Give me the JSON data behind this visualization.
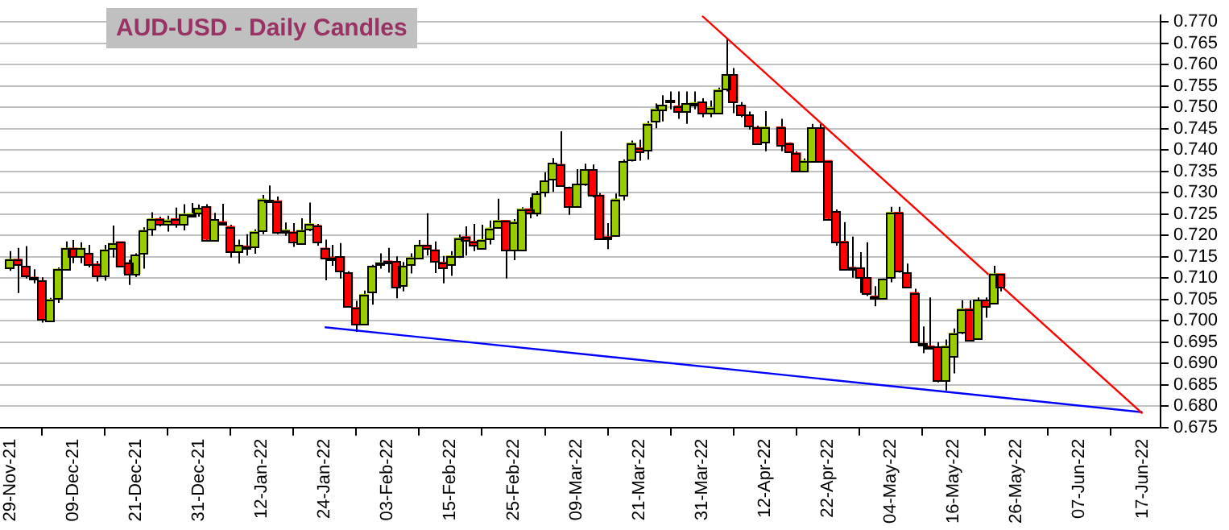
{
  "chart_data": {
    "type": "candlestick",
    "title": "AUD-USD - Daily Candles",
    "categories": [
      "29-Nov-21",
      null,
      null,
      null,
      null,
      null,
      null,
      null,
      "09-Dec-21",
      null,
      null,
      null,
      null,
      null,
      null,
      null,
      "21-Dec-21",
      null,
      null,
      null,
      null,
      null,
      null,
      null,
      "31-Dec-21",
      null,
      null,
      null,
      null,
      null,
      null,
      null,
      "12-Jan-22",
      null,
      null,
      null,
      null,
      null,
      null,
      null,
      "24-Jan-22",
      null,
      null,
      null,
      null,
      null,
      null,
      null,
      "03-Feb-22",
      null,
      null,
      null,
      null,
      null,
      null,
      null,
      "15-Feb-22",
      null,
      null,
      null,
      null,
      null,
      null,
      null,
      "25-Feb-22",
      null,
      null,
      null,
      null,
      null,
      null,
      null,
      "09-Mar-22",
      null,
      null,
      null,
      null,
      null,
      null,
      null,
      "21-Mar-22",
      null,
      null,
      null,
      null,
      null,
      null,
      null,
      "31-Mar-22",
      null,
      null,
      null,
      null,
      null,
      null,
      null,
      "12-Apr-22",
      null,
      null,
      null,
      null,
      null,
      null,
      null,
      "22-Apr-22",
      null,
      null,
      null,
      null,
      null,
      null,
      null,
      "04-May-22",
      null,
      null,
      null,
      null,
      null,
      null,
      null,
      "16-May-22",
      null,
      null,
      null,
      null,
      null,
      null,
      null,
      "26-May-22",
      null,
      null,
      null,
      null,
      null,
      null,
      null,
      "07-Jun-22",
      null,
      null,
      null,
      null,
      null,
      null,
      null,
      "17-Jun-22",
      null,
      null
    ],
    "ohlc": [
      [
        0.7126,
        0.7163,
        0.7117,
        0.7144
      ],
      [
        0.7144,
        0.7171,
        0.7065,
        0.7131
      ],
      [
        0.7127,
        0.7175,
        0.7099,
        0.7107
      ],
      [
        0.7102,
        0.7121,
        0.7088,
        0.7097
      ],
      [
        0.7094,
        0.7102,
        0.6996,
        0.7003
      ],
      [
        0.6999,
        0.7054,
        0.6999,
        0.705
      ],
      [
        0.7053,
        0.7125,
        0.7042,
        0.7121
      ],
      [
        0.7122,
        0.7186,
        0.7118,
        0.717
      ],
      [
        0.717,
        0.7189,
        0.7135,
        0.715
      ],
      [
        0.715,
        0.7184,
        0.7135,
        0.717
      ],
      [
        0.7158,
        0.7178,
        0.7125,
        0.7134
      ],
      [
        0.7133,
        0.714,
        0.7092,
        0.7107
      ],
      [
        0.7108,
        0.7178,
        0.7094,
        0.7166
      ],
      [
        0.717,
        0.7223,
        0.7148,
        0.7181
      ],
      [
        0.7185,
        0.7185,
        0.7126,
        0.7127
      ],
      [
        0.7136,
        0.7143,
        0.7084,
        0.7111
      ],
      [
        0.7111,
        0.7158,
        0.7103,
        0.7154
      ],
      [
        0.7158,
        0.7219,
        0.7122,
        0.7212
      ],
      [
        0.7216,
        0.7254,
        0.7199,
        0.7239
      ],
      [
        0.7239,
        0.7244,
        0.7221,
        0.7226
      ],
      [
        0.7227,
        0.7246,
        0.7209,
        0.7236
      ],
      [
        0.7239,
        0.7265,
        0.7218,
        0.7226
      ],
      [
        0.7227,
        0.7273,
        0.7212,
        0.725
      ],
      [
        0.7249,
        0.7276,
        0.7246,
        0.7251
      ],
      [
        0.7254,
        0.7272,
        0.7244,
        0.7263
      ],
      [
        0.7267,
        0.7273,
        0.7189,
        0.7191
      ],
      [
        0.7189,
        0.7253,
        0.7186,
        0.7237
      ],
      [
        0.7232,
        0.7274,
        0.7223,
        0.7227
      ],
      [
        0.7221,
        0.7225,
        0.7148,
        0.7161
      ],
      [
        0.7161,
        0.719,
        0.7134,
        0.7177
      ],
      [
        0.7175,
        0.7203,
        0.7153,
        0.717
      ],
      [
        0.7173,
        0.7214,
        0.7157,
        0.7209
      ],
      [
        0.721,
        0.7295,
        0.7203,
        0.7285
      ],
      [
        0.728,
        0.7317,
        0.7277,
        0.7282
      ],
      [
        0.7281,
        0.7291,
        0.7203,
        0.7208
      ],
      [
        0.721,
        0.723,
        0.7199,
        0.7213
      ],
      [
        0.7208,
        0.7229,
        0.7173,
        0.7187
      ],
      [
        0.7183,
        0.724,
        0.7178,
        0.7212
      ],
      [
        0.7214,
        0.7277,
        0.721,
        0.7227
      ],
      [
        0.7223,
        0.7227,
        0.7176,
        0.7185
      ],
      [
        0.717,
        0.719,
        0.7095,
        0.7147
      ],
      [
        0.7149,
        0.7178,
        0.7129,
        0.7147
      ],
      [
        0.715,
        0.7182,
        0.7099,
        0.7118
      ],
      [
        0.7112,
        0.7116,
        0.7031,
        0.7035
      ],
      [
        0.7031,
        0.7047,
        0.6974,
        0.6994
      ],
      [
        0.6993,
        0.7071,
        0.6993,
        0.7062
      ],
      [
        0.707,
        0.7131,
        0.7038,
        0.7127
      ],
      [
        0.7131,
        0.7158,
        0.7122,
        0.7136
      ],
      [
        0.714,
        0.7171,
        0.7113,
        0.7138
      ],
      [
        0.7139,
        0.7151,
        0.7053,
        0.7078
      ],
      [
        0.7082,
        0.7138,
        0.7069,
        0.7128
      ],
      [
        0.7131,
        0.7158,
        0.7111,
        0.7148
      ],
      [
        0.7149,
        0.7189,
        0.7147,
        0.7177
      ],
      [
        0.7177,
        0.7252,
        0.7153,
        0.717
      ],
      [
        0.7166,
        0.7186,
        0.7112,
        0.7139
      ],
      [
        0.7137,
        0.7152,
        0.7088,
        0.7126
      ],
      [
        0.7131,
        0.7163,
        0.7105,
        0.7152
      ],
      [
        0.7153,
        0.7202,
        0.7147,
        0.7194
      ],
      [
        0.7197,
        0.7221,
        0.7153,
        0.7189
      ],
      [
        0.7186,
        0.7227,
        0.7163,
        0.7177
      ],
      [
        0.717,
        0.7225,
        0.7167,
        0.719
      ],
      [
        0.7193,
        0.7235,
        0.7179,
        0.7217
      ],
      [
        0.722,
        0.7286,
        0.7216,
        0.7235
      ],
      [
        0.7235,
        0.7235,
        0.7099,
        0.7166
      ],
      [
        0.7166,
        0.7238,
        0.7142,
        0.7232
      ],
      [
        0.7165,
        0.7266,
        0.7163,
        0.7262
      ],
      [
        0.7262,
        0.7289,
        0.724,
        0.7253
      ],
      [
        0.7253,
        0.7304,
        0.7245,
        0.7297
      ],
      [
        0.7302,
        0.7348,
        0.729,
        0.7327
      ],
      [
        0.7331,
        0.7381,
        0.7302,
        0.7369
      ],
      [
        0.7366,
        0.7444,
        0.7314,
        0.7318
      ],
      [
        0.7312,
        0.7314,
        0.7248,
        0.727
      ],
      [
        0.727,
        0.7355,
        0.7268,
        0.732
      ],
      [
        0.732,
        0.7368,
        0.7316,
        0.7354
      ],
      [
        0.7354,
        0.7366,
        0.7289,
        0.7294
      ],
      [
        0.7294,
        0.7299,
        0.7192,
        0.7193
      ],
      [
        0.7197,
        0.7229,
        0.7168,
        0.7194
      ],
      [
        0.72,
        0.7298,
        0.7197,
        0.7285
      ],
      [
        0.7293,
        0.7378,
        0.7282,
        0.7373
      ],
      [
        0.7377,
        0.7422,
        0.7373,
        0.7416
      ],
      [
        0.7405,
        0.7424,
        0.7375,
        0.7396
      ],
      [
        0.74,
        0.7468,
        0.7378,
        0.7462
      ],
      [
        0.7469,
        0.7509,
        0.7451,
        0.7496
      ],
      [
        0.7495,
        0.7528,
        0.7467,
        0.7505
      ],
      [
        0.7516,
        0.7537,
        0.7495,
        0.7512
      ],
      [
        0.7503,
        0.7537,
        0.7473,
        0.7491
      ],
      [
        0.7491,
        0.7537,
        0.7461,
        0.7508
      ],
      [
        0.7508,
        0.7537,
        0.7495,
        0.7511
      ],
      [
        0.7512,
        0.7521,
        0.7477,
        0.7486
      ],
      [
        0.7486,
        0.7516,
        0.7477,
        0.75
      ],
      [
        0.7487,
        0.7546,
        0.7486,
        0.7541
      ],
      [
        0.7544,
        0.7662,
        0.7537,
        0.7576
      ],
      [
        0.7576,
        0.7592,
        0.7486,
        0.7512
      ],
      [
        0.7505,
        0.7512,
        0.7477,
        0.7482
      ],
      [
        0.7482,
        0.749,
        0.7448,
        0.7457
      ],
      [
        0.7453,
        0.7457,
        0.7416,
        0.7417
      ],
      [
        0.7418,
        0.7491,
        0.7397,
        0.7454
      ],
      null,
      [
        0.7454,
        0.7473,
        0.7397,
        0.7413
      ],
      [
        0.7416,
        0.7418,
        0.7395,
        0.7398
      ],
      [
        0.7393,
        0.7397,
        0.7348,
        0.7352
      ],
      [
        0.7352,
        0.738,
        0.7349,
        0.7375
      ],
      [
        0.7375,
        0.7461,
        0.7372,
        0.7452
      ],
      [
        0.7452,
        0.7461,
        0.7371,
        0.7375
      ],
      [
        0.7375,
        0.7376,
        0.7238,
        0.724
      ],
      [
        0.7256,
        0.7261,
        0.7176,
        0.7185
      ],
      [
        0.7186,
        0.7231,
        0.7122,
        0.7122
      ],
      [
        0.7125,
        0.7197,
        0.7101,
        0.7122
      ],
      [
        0.7124,
        0.7161,
        0.7065,
        0.7103
      ],
      [
        0.7101,
        0.7184,
        0.7058,
        0.7065
      ],
      [
        0.7058,
        0.7081,
        0.7034,
        0.7055
      ],
      [
        0.7053,
        0.7099,
        0.7052,
        0.7097
      ],
      [
        0.7101,
        0.7267,
        0.709,
        0.7254
      ],
      [
        0.7254,
        0.7267,
        0.7113,
        0.7116
      ],
      [
        0.7112,
        0.7134,
        0.7079,
        0.7081
      ],
      [
        0.7066,
        0.7075,
        0.6948,
        0.695
      ],
      [
        0.6947,
        0.6987,
        0.6924,
        0.6943
      ],
      [
        0.6941,
        0.7055,
        0.6933,
        0.6937
      ],
      [
        0.6939,
        0.695,
        0.6856,
        0.686
      ],
      [
        0.686,
        0.6956,
        0.6837,
        0.6941
      ],
      [
        0.6919,
        0.6982,
        0.6877,
        0.6971
      ],
      [
        0.6973,
        0.7048,
        0.6969,
        0.7028
      ],
      [
        0.7028,
        0.7048,
        0.6953,
        0.6956
      ],
      [
        0.6959,
        0.7055,
        0.6956,
        0.7048
      ],
      [
        0.7048,
        0.7055,
        0.7007,
        0.7035
      ],
      [
        0.7043,
        0.7129,
        0.704,
        0.711
      ],
      [
        0.711,
        0.711,
        0.7069,
        0.7081
      ],
      null,
      null,
      null,
      null,
      null,
      null,
      null,
      null,
      null,
      null,
      null,
      null,
      null,
      null,
      null,
      null,
      null,
      null,
      null,
      null
    ],
    "colors": [
      "#99cc00",
      "#ff0000",
      "#ff0000",
      "#ff0000",
      "#ff0000",
      "#99cc00",
      "#99cc00",
      "#99cc00",
      "#ff0000",
      "#99cc00",
      "#ff0000",
      "#ff0000",
      "#99cc00",
      "#99cc00",
      "#ff0000",
      "#ff0000",
      "#99cc00",
      "#99cc00",
      "#99cc00",
      "#ff0000",
      "#99cc00",
      "#ff0000",
      "#99cc00",
      "#99cc00",
      "#99cc00",
      "#ff0000",
      "#99cc00",
      "#ff0000",
      "#ff0000",
      "#99cc00",
      "#ff0000",
      "#99cc00",
      "#99cc00",
      "#99cc00",
      "#ff0000",
      "#99cc00",
      "#ff0000",
      "#99cc00",
      "#99cc00",
      "#ff0000",
      "#ff0000",
      "#ff0000",
      "#ff0000",
      "#ff0000",
      "#ff0000",
      "#99cc00",
      "#99cc00",
      "#99cc00",
      "#ff0000",
      "#ff0000",
      "#99cc00",
      "#99cc00",
      "#99cc00",
      "#ff0000",
      "#ff0000",
      "#ff0000",
      "#99cc00",
      "#99cc00",
      "#ff0000",
      "#ff0000",
      "#99cc00",
      "#99cc00",
      "#99cc00",
      "#ff0000",
      "#99cc00",
      "#99cc00",
      "#ff0000",
      "#99cc00",
      "#99cc00",
      "#99cc00",
      "#ff0000",
      "#ff0000",
      "#99cc00",
      "#99cc00",
      "#ff0000",
      "#ff0000",
      "#ff0000",
      "#99cc00",
      "#99cc00",
      "#99cc00",
      "#ff0000",
      "#99cc00",
      "#99cc00",
      "#99cc00",
      "#ff0000",
      "#ff0000",
      "#99cc00",
      "#99cc00",
      "#ff0000",
      "#99cc00",
      "#99cc00",
      "#99cc00",
      "#ff0000",
      "#ff0000",
      "#ff0000",
      "#ff0000",
      "#99cc00",
      null,
      "#ff0000",
      "#ff0000",
      "#ff0000",
      "#99cc00",
      "#99cc00",
      "#ff0000",
      "#ff0000",
      "#ff0000",
      "#ff0000",
      "#ff0000",
      "#ff0000",
      "#ff0000",
      "#ff0000",
      "#99cc00",
      "#99cc00",
      "#ff0000",
      "#ff0000",
      "#ff0000",
      "#ff0000",
      "#ff0000",
      "#ff0000",
      "#99cc00",
      "#99cc00",
      "#99cc00",
      "#ff0000",
      "#99cc00",
      "#ff0000",
      "#99cc00",
      "#ff0000",
      null,
      null,
      null,
      null,
      null,
      null,
      null,
      null,
      null,
      null,
      null,
      null,
      null,
      null,
      null,
      null,
      null,
      null,
      null,
      null
    ],
    "series": [
      {
        "type": "line",
        "color": "#ff0000",
        "x": [
          "31-Mar-22",
          "17-Jun-22"
        ],
        "values": [
          0.7714,
          0.6783
        ]
      },
      {
        "type": "line",
        "color": "#0000ff",
        "x": [
          "24-Jan-22",
          "17-Jun-22"
        ],
        "values": [
          0.6985,
          0.6786
        ]
      }
    ],
    "ylim": [
      0.675,
      0.7715
    ],
    "yticks": [
      {
        "value": 0.675,
        "label": "0.675"
      },
      {
        "value": 0.68,
        "label": "0.680"
      },
      {
        "value": 0.685,
        "label": "0.685"
      },
      {
        "value": 0.69,
        "label": "0.690"
      },
      {
        "value": 0.695,
        "label": "0.695"
      },
      {
        "value": 0.7,
        "label": "0.700"
      },
      {
        "value": 0.705,
        "label": "0.705"
      },
      {
        "value": 0.71,
        "label": "0.710"
      },
      {
        "value": 0.715,
        "label": "0.715"
      },
      {
        "value": 0.72,
        "label": "0.720"
      },
      {
        "value": 0.725,
        "label": "0.725"
      },
      {
        "value": 0.73,
        "label": "0.730"
      },
      {
        "value": 0.735,
        "label": "0.735"
      },
      {
        "value": 0.74,
        "label": "0.740"
      },
      {
        "value": 0.745,
        "label": "0.745"
      },
      {
        "value": 0.75,
        "label": "0.750"
      },
      {
        "value": 0.755,
        "label": "0.755"
      },
      {
        "value": 0.76,
        "label": "0.760"
      },
      {
        "value": 0.765,
        "label": "0.765"
      },
      {
        "value": 0.77,
        "label": "0.770"
      }
    ],
    "grid": "y",
    "legend": false
  }
}
